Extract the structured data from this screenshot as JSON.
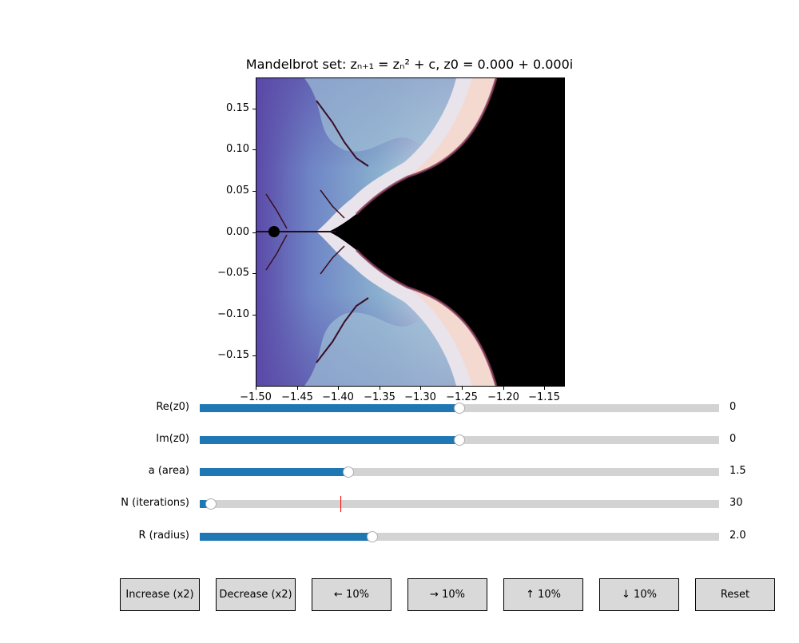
{
  "title": "Mandelbrot set: zₙ₊₁ = zₙ² + c, z0 = 0.000 + 0.000i",
  "axes": {
    "xlim": [
      -1.5,
      -1.125
    ],
    "ylim": [
      -0.1875,
      0.1875
    ],
    "x_ticks": [
      "−1.50",
      "−1.45",
      "−1.40",
      "−1.35",
      "−1.30",
      "−1.25",
      "−1.20",
      "−1.15"
    ],
    "x_tick_values": [
      -1.5,
      -1.45,
      -1.4,
      -1.35,
      -1.3,
      -1.25,
      -1.2,
      -1.15
    ],
    "y_ticks": [
      "0.15",
      "0.10",
      "0.05",
      "0.00",
      "−0.05",
      "−0.10",
      "−0.15"
    ],
    "y_tick_values": [
      0.15,
      0.1,
      0.05,
      0.0,
      -0.05,
      -0.1,
      -0.15
    ]
  },
  "colors": {
    "slider_fill": "#1f77b4",
    "slider_track": "#d3d3d3",
    "initial_marker": "#ff0000",
    "button_bg": "#d9d9d9"
  },
  "sliders": [
    {
      "label": "Re(z0)",
      "value": "0",
      "fraction": 0.5
    },
    {
      "label": "Im(z0)",
      "value": "0",
      "fraction": 0.5
    },
    {
      "label": "a (area)",
      "value": "1.5",
      "fraction": 0.286
    },
    {
      "label": "N (iterations)",
      "value": "30",
      "fraction": 0.022,
      "initial_fraction": 0.271
    },
    {
      "label": "R (radius)",
      "value": "2.0",
      "fraction": 0.333
    }
  ],
  "buttons": [
    {
      "label": "Increase (x2)"
    },
    {
      "label": "Decrease (x2)"
    },
    {
      "label": "← 10%"
    },
    {
      "label": "→ 10%"
    },
    {
      "label": "↑ 10%"
    },
    {
      "label": "↓ 10%"
    },
    {
      "label": "Reset"
    }
  ]
}
